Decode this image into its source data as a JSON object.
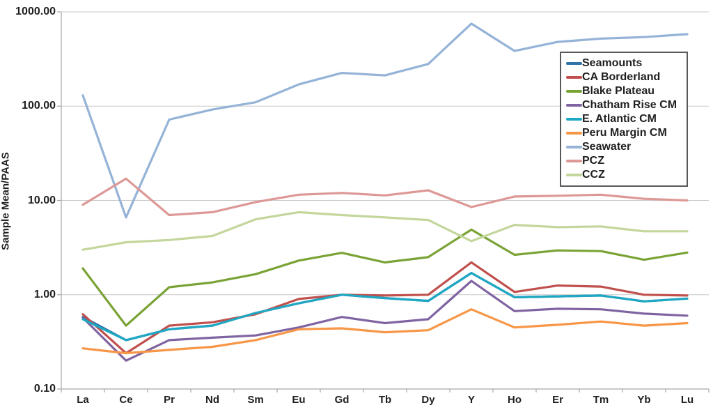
{
  "y_axis": {
    "label": "Sample Mean/PAAS",
    "scale": "log",
    "min": 0.1,
    "max": 1000,
    "tick_labels": [
      "1000.00",
      "100.00",
      "10.00",
      "1.00",
      "0.10"
    ],
    "tick_values": [
      1000,
      100,
      10,
      1,
      0.1
    ]
  },
  "x_axis": {
    "categories": [
      "La",
      "Ce",
      "Pr",
      "Nd",
      "Sm",
      "Eu",
      "Gd",
      "Tb",
      "Dy",
      "Y",
      "Ho",
      "Er",
      "Tm",
      "Yb",
      "Lu"
    ]
  },
  "legend_position": "top-right",
  "chart_data": {
    "type": "line",
    "title": "",
    "xlabel": "",
    "ylabel": "Sample Mean/PAAS",
    "yscale": "log",
    "ylim": [
      0.1,
      1000
    ],
    "grid": "horizontal-decades",
    "categories": [
      "La",
      "Ce",
      "Pr",
      "Nd",
      "Sm",
      "Eu",
      "Gd",
      "Tb",
      "Dy",
      "Y",
      "Ho",
      "Er",
      "Tm",
      "Yb",
      "Lu"
    ],
    "series": [
      {
        "name": "Seamounts",
        "color": "#2E74A8",
        "values": [
          0.58,
          0.33,
          0.43,
          0.47,
          0.64,
          0.81,
          1.0,
          0.92,
          0.86,
          1.7,
          0.94,
          0.96,
          0.98,
          0.85,
          0.91
        ]
      },
      {
        "name": "CA Borderland",
        "color": "#C0504D",
        "values": [
          0.62,
          0.24,
          0.47,
          0.51,
          0.62,
          0.9,
          1.0,
          0.98,
          1.0,
          2.2,
          1.07,
          1.25,
          1.22,
          1.0,
          0.98
        ]
      },
      {
        "name": "Blake Plateau",
        "color": "#7AA336",
        "values": [
          1.9,
          0.47,
          1.2,
          1.35,
          1.65,
          2.3,
          2.78,
          2.2,
          2.5,
          4.9,
          2.65,
          2.95,
          2.9,
          2.35,
          2.8
        ]
      },
      {
        "name": "Chatham Rise CM",
        "color": "#8064A2",
        "values": [
          0.57,
          0.2,
          0.33,
          0.35,
          0.37,
          0.45,
          0.58,
          0.5,
          0.55,
          1.4,
          0.67,
          0.71,
          0.7,
          0.63,
          0.6
        ]
      },
      {
        "name": "E. Atlantic CM",
        "color": "#1FA8C3",
        "values": [
          0.55,
          0.33,
          0.43,
          0.47,
          0.64,
          0.81,
          1.0,
          0.92,
          0.86,
          1.7,
          0.94,
          0.96,
          0.98,
          0.85,
          0.91
        ]
      },
      {
        "name": "Peru Margin CM",
        "color": "#F79646",
        "values": [
          0.27,
          0.24,
          0.26,
          0.28,
          0.33,
          0.43,
          0.44,
          0.4,
          0.42,
          0.7,
          0.45,
          0.48,
          0.52,
          0.47,
          0.5
        ]
      },
      {
        "name": "Seawater",
        "color": "#95B3D7",
        "values": [
          130,
          6.6,
          72,
          92,
          110,
          170,
          225,
          212,
          280,
          750,
          385,
          480,
          520,
          540,
          580
        ]
      },
      {
        "name": "PCZ",
        "color": "#DD9896",
        "values": [
          9.0,
          17,
          7.0,
          7.5,
          9.6,
          11.5,
          12.0,
          11.3,
          12.8,
          8.5,
          11.0,
          11.2,
          11.5,
          10.4,
          10.0
        ]
      },
      {
        "name": "CCZ",
        "color": "#C3D69B",
        "values": [
          3.0,
          3.6,
          3.8,
          4.2,
          6.3,
          7.5,
          7.0,
          6.6,
          6.2,
          3.7,
          5.5,
          5.2,
          5.3,
          4.7,
          4.7
        ]
      }
    ],
    "legend_position": "top-right"
  },
  "style_colors": {
    "gridline": "#C9C9C9",
    "axis": "#A6A6A6",
    "text": "#1f1f1f",
    "legend_border": "#595959",
    "background": "#FFFFFF"
  }
}
